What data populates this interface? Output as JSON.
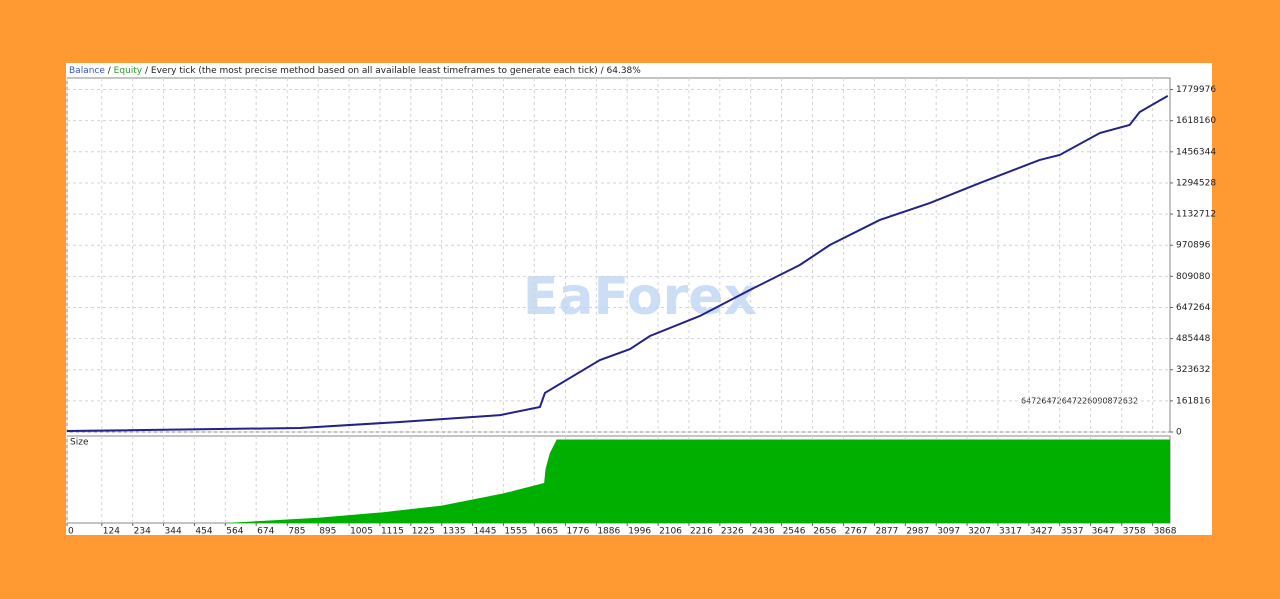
{
  "chart_data": [
    {
      "type": "line",
      "separator": " / ",
      "title": "Every tick (the most precise method based on all available least timeframes to generate each tick) / 64.38%",
      "legend": [
        {
          "name": "Balance",
          "color": "#3355cc"
        },
        {
          "name": "Equity",
          "color": "#2e9e2e"
        }
      ],
      "annotation": "64726472647226090872632",
      "watermark": "EaForex",
      "x": [
        0,
        830,
        1186,
        1543,
        1685,
        1703,
        1792,
        1899,
        2006,
        2077,
        2255,
        2433,
        2611,
        2718,
        2896,
        3074,
        3252,
        3466,
        3537,
        3680,
        3786,
        3822,
        3922
      ],
      "series": [
        {
          "name": "Balance",
          "color": "#22228a",
          "values": [
            5000,
            21000,
            52000,
            88000,
            130000,
            203000,
            281000,
            374000,
            431000,
            499000,
            603000,
            738000,
            868000,
            972000,
            1102000,
            1190000,
            1294000,
            1414000,
            1440000,
            1554000,
            1596000,
            1663000,
            1747000
          ]
        }
      ],
      "xlim": [
        0,
        3930
      ],
      "ylim": [
        0,
        1840000
      ],
      "yticks": [
        0,
        161816,
        323632,
        485448,
        647264,
        809080,
        970896,
        1132712,
        1294528,
        1456344,
        1618160,
        1779976
      ],
      "grid": true
    },
    {
      "type": "area",
      "ylabel": "Size",
      "color": "#00b000",
      "x": [
        0,
        564,
        674,
        895,
        1115,
        1335,
        1555,
        1700,
        1705,
        1720,
        1745,
        3930
      ],
      "values": [
        0,
        0,
        2,
        6,
        12,
        20,
        34,
        46,
        62,
        80,
        96,
        96
      ],
      "xlim": [
        0,
        3930
      ],
      "ylim": [
        0,
        100
      ],
      "xticks": [
        0,
        124,
        234,
        344,
        454,
        564,
        674,
        785,
        895,
        1005,
        1115,
        1225,
        1335,
        1445,
        1555,
        1665,
        1776,
        1886,
        1996,
        2106,
        2216,
        2326,
        2436,
        2546,
        2656,
        2767,
        2877,
        2987,
        3097,
        3207,
        3317,
        3427,
        3537,
        3647,
        3758,
        3868
      ],
      "grid": true
    }
  ]
}
